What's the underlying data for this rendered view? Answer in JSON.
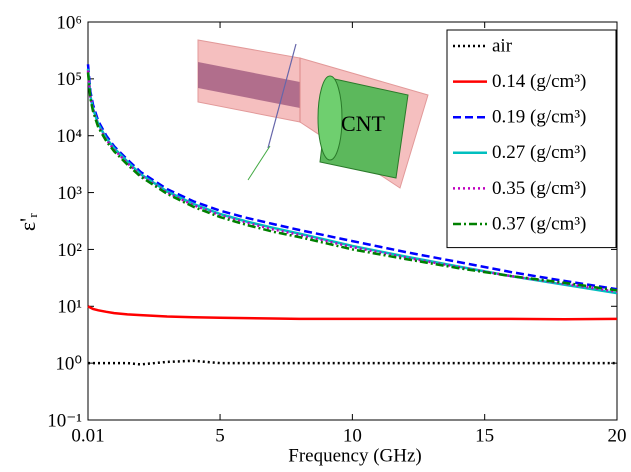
{
  "chart_data": {
    "type": "line",
    "x_label": "Frequency (GHz)",
    "y_label": "ε'ᵣ",
    "annotation": "CNT",
    "xlim": [
      0.01,
      20
    ],
    "xticks": [
      0.01,
      5,
      10,
      15,
      20
    ],
    "ylim": [
      0.1,
      1000000
    ],
    "log_y": true,
    "yticks": [
      {
        "value": 0.1,
        "label": "10⁻¹"
      },
      {
        "value": 1,
        "label": "10⁰"
      },
      {
        "value": 10,
        "label": "10¹"
      },
      {
        "value": 100,
        "label": "10²"
      },
      {
        "value": 1000,
        "label": "10³"
      },
      {
        "value": 10000,
        "label": "10⁴"
      },
      {
        "value": 100000,
        "label": "10⁵"
      },
      {
        "value": 1000000,
        "label": "10⁶"
      }
    ],
    "legend": "upper right",
    "x": [
      0.01,
      0.1,
      0.2,
      0.4,
      0.7,
      1,
      1.5,
      2,
      3,
      4,
      5,
      6,
      7,
      8,
      10,
      12,
      14,
      16,
      18,
      20
    ],
    "series": [
      {
        "name": "air",
        "color": "#000000",
        "style": "dotted",
        "values": [
          1,
          1,
          1,
          1,
          1,
          1,
          1,
          0.95,
          1.05,
          1.1,
          1,
          1,
          1,
          1,
          1,
          1,
          1,
          1,
          1,
          1
        ]
      },
      {
        "name": "0.14 (g/cm³)",
        "color": "#ff0000",
        "style": "solid",
        "values": [
          10,
          9.5,
          9,
          8.5,
          8,
          7.6,
          7.2,
          7,
          6.6,
          6.4,
          6.3,
          6.2,
          6.1,
          6,
          6,
          6,
          6,
          6,
          5.9,
          6
        ]
      },
      {
        "name": "0.19 (g/cm³)",
        "color": "#0000ff",
        "style": "dashed",
        "values": [
          180000,
          60000,
          35000,
          18000,
          10000,
          6500,
          3800,
          2300,
          1150,
          700,
          480,
          360,
          280,
          220,
          140,
          90,
          60,
          40,
          28,
          20
        ]
      },
      {
        "name": "0.27 (g/cm³)",
        "color": "#00bfbf",
        "style": "solid",
        "values": [
          150000,
          50000,
          30000,
          16000,
          9000,
          6000,
          3500,
          2100,
          1050,
          630,
          420,
          310,
          240,
          190,
          115,
          75,
          50,
          34,
          24,
          17
        ]
      },
      {
        "name": "0.35 (g/cm³)",
        "color": "#bf00bf",
        "style": "dotted",
        "values": [
          140000,
          48000,
          29000,
          15000,
          8500,
          5700,
          3300,
          2000,
          1000,
          600,
          400,
          295,
          225,
          180,
          110,
          72,
          49,
          34,
          25,
          18
        ]
      },
      {
        "name": "0.37 (g/cm³)",
        "color": "#008000",
        "style": "dashdot",
        "values": [
          130000,
          45000,
          27000,
          14000,
          8000,
          5300,
          3100,
          1900,
          950,
          560,
          370,
          270,
          205,
          165,
          100,
          68,
          47,
          34,
          26,
          19
        ]
      }
    ]
  }
}
